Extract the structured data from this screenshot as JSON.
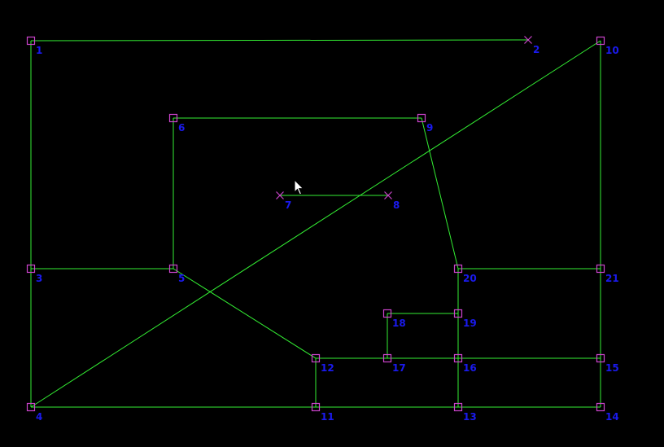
{
  "colors": {
    "background": "#000000",
    "edge": "#33ee33",
    "node": "#cc44cc",
    "label": "#1a1aee",
    "cursor_fill": "#ffffff",
    "cursor_stroke": "#000000"
  },
  "nodes": [
    {
      "id": "1",
      "label": "1",
      "shape": "square"
    },
    {
      "id": "2",
      "label": "2",
      "shape": "cross"
    },
    {
      "id": "3",
      "label": "3",
      "shape": "square"
    },
    {
      "id": "4",
      "label": "4",
      "shape": "square"
    },
    {
      "id": "5",
      "label": "5",
      "shape": "square"
    },
    {
      "id": "6",
      "label": "6",
      "shape": "square"
    },
    {
      "id": "7",
      "label": "7",
      "shape": "cross"
    },
    {
      "id": "8",
      "label": "8",
      "shape": "cross"
    },
    {
      "id": "9",
      "label": "9",
      "shape": "square"
    },
    {
      "id": "10",
      "label": "10",
      "shape": "square"
    },
    {
      "id": "11",
      "label": "11",
      "shape": "square"
    },
    {
      "id": "12",
      "label": "12",
      "shape": "square"
    },
    {
      "id": "13",
      "label": "13",
      "shape": "square"
    },
    {
      "id": "14",
      "label": "14",
      "shape": "square"
    },
    {
      "id": "15",
      "label": "15",
      "shape": "square"
    },
    {
      "id": "16",
      "label": "16",
      "shape": "square"
    },
    {
      "id": "17",
      "label": "17",
      "shape": "square"
    },
    {
      "id": "18",
      "label": "18",
      "shape": "square"
    },
    {
      "id": "19",
      "label": "19",
      "shape": "square"
    },
    {
      "id": "20",
      "label": "20",
      "shape": "square"
    },
    {
      "id": "21",
      "label": "21",
      "shape": "square"
    }
  ],
  "edges": [
    [
      "1",
      "2"
    ],
    [
      "1",
      "3"
    ],
    [
      "3",
      "4"
    ],
    [
      "3",
      "5"
    ],
    [
      "5",
      "6"
    ],
    [
      "6",
      "9"
    ],
    [
      "9",
      "20"
    ],
    [
      "20",
      "21"
    ],
    [
      "10",
      "21"
    ],
    [
      "21",
      "15"
    ],
    [
      "15",
      "14"
    ],
    [
      "4",
      "10"
    ],
    [
      "4",
      "11"
    ],
    [
      "11",
      "13"
    ],
    [
      "13",
      "14"
    ],
    [
      "5",
      "12"
    ],
    [
      "12",
      "11"
    ],
    [
      "12",
      "17"
    ],
    [
      "17",
      "16"
    ],
    [
      "16",
      "15"
    ],
    [
      "17",
      "18"
    ],
    [
      "18",
      "19"
    ],
    [
      "19",
      "16"
    ],
    [
      "20",
      "19"
    ],
    [
      "16",
      "13"
    ],
    [
      "7",
      "8"
    ]
  ],
  "cursor": {
    "icon": "mouse-pointer-icon"
  }
}
